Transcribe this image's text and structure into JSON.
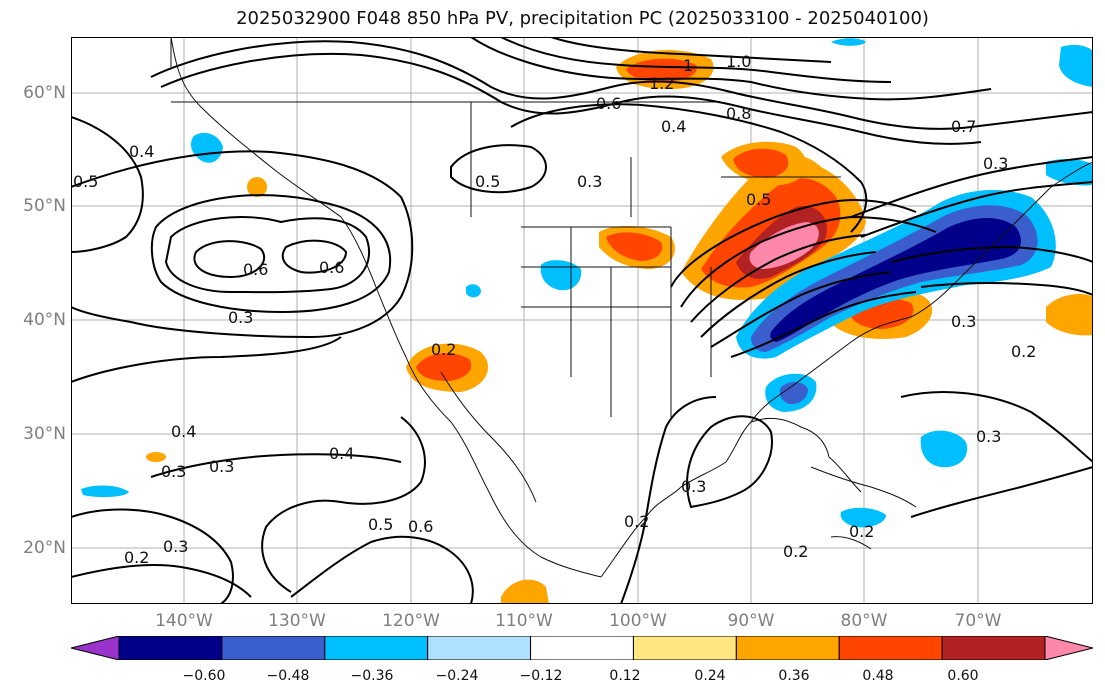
{
  "title": "2025032900 F048 850 hPa PV, precipitation PC (2025033100 - 2025040100)",
  "lat_labels": [
    "60°N",
    "50°N",
    "40°N",
    "30°N",
    "20°N"
  ],
  "lon_labels": [
    "140°W",
    "130°W",
    "120°W",
    "110°W",
    "100°W",
    "90°W",
    "80°W",
    "70°W"
  ],
  "contour_labels": [
    "0.4",
    "0.5",
    "0.6",
    "0.6",
    "0.3",
    "0.5",
    "0.3",
    "0.2",
    "0.8",
    "1.0",
    "1.2",
    "1",
    "0.6",
    "0.4",
    "0.3",
    "0.5",
    "0.7",
    "0.3",
    "0.2",
    "0.3",
    "0.4",
    "0.3",
    "0.4",
    "0.3",
    "0.3",
    "0.3",
    "0.2",
    "0.2",
    "0.5",
    "0.6",
    "0.2",
    "0.2"
  ],
  "colorbar": {
    "ticks": [
      "−0.60",
      "−0.48",
      "−0.36",
      "−0.24",
      "−0.12",
      "0.12",
      "0.24",
      "0.36",
      "0.48",
      "0.60"
    ],
    "colors": [
      "#9933cc",
      "#00008b",
      "#3a5fcd",
      "#00bfff",
      "#b0e0ff",
      "#ffffff",
      "#ffe680",
      "#ffa500",
      "#ff4500",
      "#b22222",
      "#ff88aa"
    ]
  }
}
